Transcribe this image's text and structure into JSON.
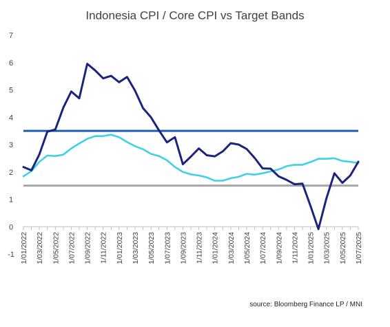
{
  "chart_data": {
    "type": "line",
    "title": "Indonesia CPI / Core CPI vs Target Bands",
    "source": "source: Bloomberg Finance LP / MNI",
    "xlabel": "",
    "ylabel": "",
    "ylim": [
      -1,
      7
    ],
    "yticks": [
      -1,
      0,
      1,
      2,
      3,
      4,
      5,
      6,
      7
    ],
    "grid": false,
    "legend": "none",
    "x_tick_labels": [
      "1/01/2022",
      "1/03/2022",
      "1/05/2022",
      "1/07/2022",
      "1/09/2022",
      "1/11/2022",
      "1/01/2023",
      "1/03/2023",
      "1/05/2023",
      "1/07/2023",
      "1/09/2023",
      "1/11/2023",
      "1/01/2024",
      "1/03/2024",
      "1/05/2024",
      "1/07/2024",
      "1/09/2024",
      "1/11/2024",
      "1/01/2025",
      "1/03/2025",
      "1/05/2025",
      "1/07/2025"
    ],
    "x": [
      "2022-01",
      "2022-02",
      "2022-03",
      "2022-04",
      "2022-05",
      "2022-06",
      "2022-07",
      "2022-08",
      "2022-09",
      "2022-10",
      "2022-11",
      "2022-12",
      "2023-01",
      "2023-02",
      "2023-03",
      "2023-04",
      "2023-05",
      "2023-06",
      "2023-07",
      "2023-08",
      "2023-09",
      "2023-10",
      "2023-11",
      "2023-12",
      "2024-01",
      "2024-02",
      "2024-03",
      "2024-04",
      "2024-05",
      "2024-06",
      "2024-07",
      "2024-08",
      "2024-09",
      "2024-10",
      "2024-11",
      "2024-12",
      "2025-01",
      "2025-02",
      "2025-03",
      "2025-04",
      "2025-05",
      "2025-06",
      "2025-07"
    ],
    "series": [
      {
        "color": "#1a237e",
        "values": [
          2.18,
          2.06,
          2.64,
          3.47,
          3.55,
          4.35,
          4.94,
          4.69,
          5.95,
          5.71,
          5.42,
          5.51,
          5.28,
          5.47,
          4.97,
          4.33,
          4.0,
          3.52,
          3.08,
          3.27,
          2.28,
          2.56,
          2.86,
          2.61,
          2.57,
          2.75,
          3.05,
          3.0,
          2.84,
          2.51,
          2.13,
          2.12,
          1.84,
          1.71,
          1.55,
          1.57,
          0.76,
          -0.09,
          1.03,
          1.95,
          1.6,
          1.87,
          2.37
        ]
      },
      {
        "color": "#3fd1e8",
        "values": [
          1.84,
          2.03,
          2.37,
          2.6,
          2.58,
          2.63,
          2.86,
          3.04,
          3.21,
          3.31,
          3.31,
          3.36,
          3.27,
          3.09,
          2.94,
          2.83,
          2.66,
          2.58,
          2.43,
          2.18,
          2.0,
          1.91,
          1.87,
          1.8,
          1.68,
          1.68,
          1.77,
          1.82,
          1.93,
          1.9,
          1.95,
          2.02,
          2.09,
          2.21,
          2.26,
          2.26,
          2.36,
          2.48,
          2.48,
          2.5,
          2.4,
          2.37,
          2.32
        ]
      }
    ],
    "target_bands": [
      {
        "value": 3.5,
        "color": "#1f5fad"
      },
      {
        "value": 1.5,
        "color": "#a6a6a6"
      }
    ]
  }
}
